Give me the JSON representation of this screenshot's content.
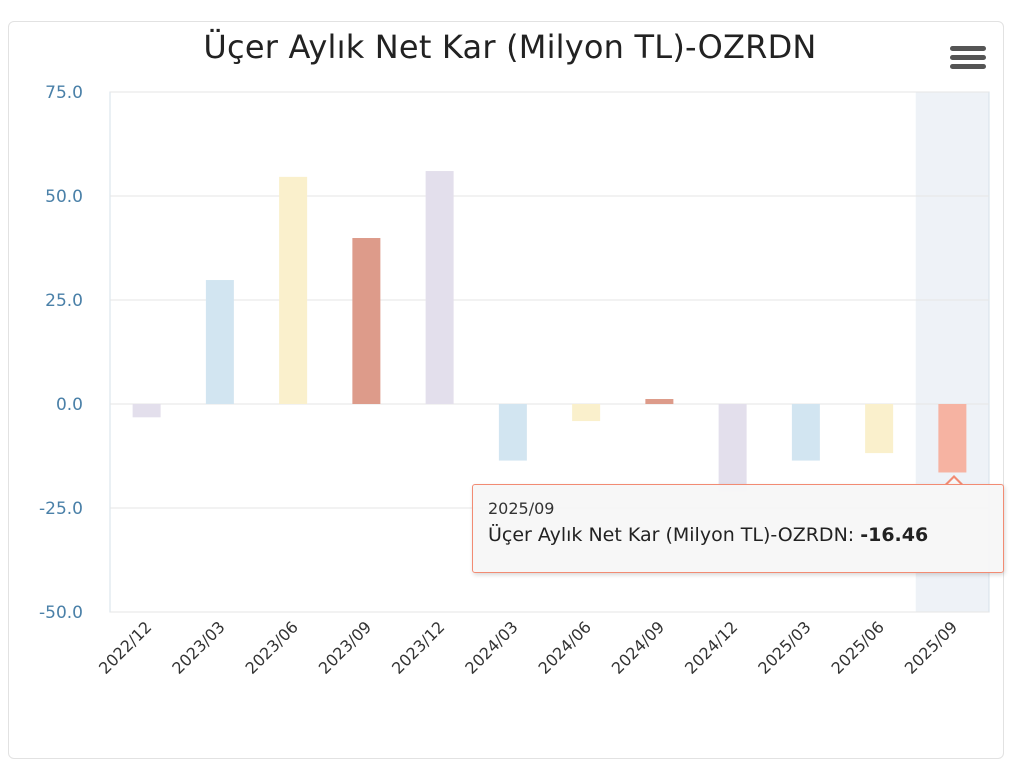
{
  "chart_data": {
    "type": "bar",
    "title": "Üçer Aylık Net Kar (Milyon TL)-OZRDN",
    "categories": [
      "2022/12",
      "2023/03",
      "2023/06",
      "2023/09",
      "2023/12",
      "2024/03",
      "2024/06",
      "2024/09",
      "2024/12",
      "2025/03",
      "2025/06",
      "2025/09"
    ],
    "series": [
      {
        "name": "Üçer Aylık Net Kar (Milyon TL)-OZRDN",
        "values": [
          -3.2,
          29.8,
          54.6,
          39.9,
          56.0,
          -13.6,
          -4.1,
          1.2,
          -21.0,
          -13.6,
          -11.8,
          -16.46
        ]
      }
    ],
    "bar_colors": [
      "#e3dfec",
      "#d2e5f1",
      "#faf0cc",
      "#dd9b8a",
      "#e3dfec",
      "#d2e5f1",
      "#faf0cc",
      "#dd9b8a",
      "#e3dfec",
      "#d2e5f1",
      "#faf0cc",
      "#f6b3a2"
    ],
    "yticks": [
      "75.0",
      "50.0",
      "25.0",
      "0.0",
      "-25.0",
      "-50.0"
    ],
    "ylim": [
      -50,
      75
    ],
    "highlighted_category": "2025/09",
    "grid": true,
    "legend": "none"
  },
  "tooltip": {
    "date": "2025/09",
    "series_label": "Üçer Aylık Net Kar (Milyon TL)-OZRDN: ",
    "value": "-16.46"
  },
  "colors": {
    "axis_label": "#4a80a8",
    "tooltip_border": "#f28b73",
    "highlight_band": "#eef2f7",
    "grid": "#e6e6e6"
  },
  "icons": {
    "menu": "hamburger-menu-icon"
  }
}
